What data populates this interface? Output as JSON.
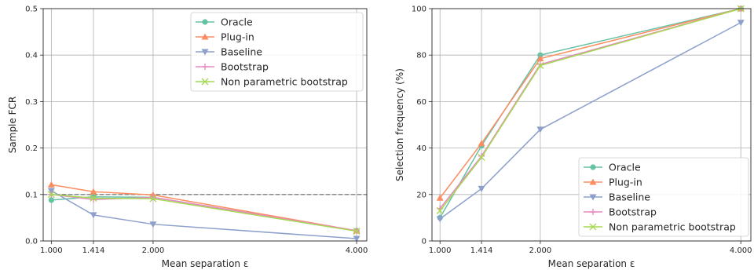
{
  "chart_data": [
    {
      "type": "line",
      "xlabel": "Mean separation ε",
      "ylabel": "Sample FCR",
      "x": [
        1.0,
        1.414,
        2.0,
        4.0
      ],
      "x_tick_labels": [
        "1.000",
        "1.414",
        "2.000",
        "4.000"
      ],
      "xlim": [
        0.92,
        4.1
      ],
      "ylim": [
        0,
        0.5
      ],
      "y_ticks": [
        0,
        0.1,
        0.2,
        0.3,
        0.4,
        0.5
      ],
      "y_tick_labels": [
        "0.0",
        "0.1",
        "0.2",
        "0.3",
        "0.4",
        "0.5"
      ],
      "grid": true,
      "reference_line": 0.1,
      "legend_position": "top-right",
      "series": [
        {
          "name": "Oracle",
          "color": "#66c2a5",
          "marker": "circle",
          "values": [
            0.088,
            0.095,
            0.094,
            0.022
          ]
        },
        {
          "name": "Plug-in",
          "color": "#fc8d62",
          "marker": "triangle-up",
          "values": [
            0.121,
            0.106,
            0.099,
            0.022
          ]
        },
        {
          "name": "Baseline",
          "color": "#8da0cb",
          "marker": "triangle-down",
          "values": [
            0.108,
            0.056,
            0.036,
            0.005
          ]
        },
        {
          "name": "Bootstrap",
          "color": "#e78ac3",
          "marker": "plus",
          "values": [
            0.1,
            0.089,
            0.094,
            0.022
          ]
        },
        {
          "name": "Non parametric bootstrap",
          "color": "#a6d854",
          "marker": "x",
          "values": [
            0.1,
            0.092,
            0.091,
            0.021
          ]
        }
      ]
    },
    {
      "type": "line",
      "xlabel": "Mean separation ε",
      "ylabel": "Selection frequency (%)",
      "x": [
        1.0,
        1.414,
        2.0,
        4.0
      ],
      "x_tick_labels": [
        "1.000",
        "1.414",
        "2.000",
        "4.000"
      ],
      "xlim": [
        0.92,
        4.1
      ],
      "ylim": [
        0,
        100
      ],
      "y_ticks": [
        0,
        20,
        40,
        60,
        80,
        100
      ],
      "y_tick_labels": [
        "0",
        "20",
        "40",
        "60",
        "80",
        "100"
      ],
      "grid": true,
      "legend_position": "bottom-right",
      "series": [
        {
          "name": "Oracle",
          "color": "#66c2a5",
          "marker": "circle",
          "values": [
            10,
            41,
            80,
            100
          ]
        },
        {
          "name": "Plug-in",
          "color": "#fc8d62",
          "marker": "triangle-up",
          "values": [
            18.5,
            42,
            78.5,
            100
          ]
        },
        {
          "name": "Baseline",
          "color": "#8da0cb",
          "marker": "triangle-down",
          "values": [
            9.5,
            22.5,
            48,
            94
          ]
        },
        {
          "name": "Bootstrap",
          "color": "#e78ac3",
          "marker": "plus",
          "values": [
            14,
            36.5,
            76,
            100
          ]
        },
        {
          "name": "Non parametric bootstrap",
          "color": "#a6d854",
          "marker": "x",
          "values": [
            13,
            36,
            75.5,
            100
          ]
        }
      ]
    }
  ]
}
